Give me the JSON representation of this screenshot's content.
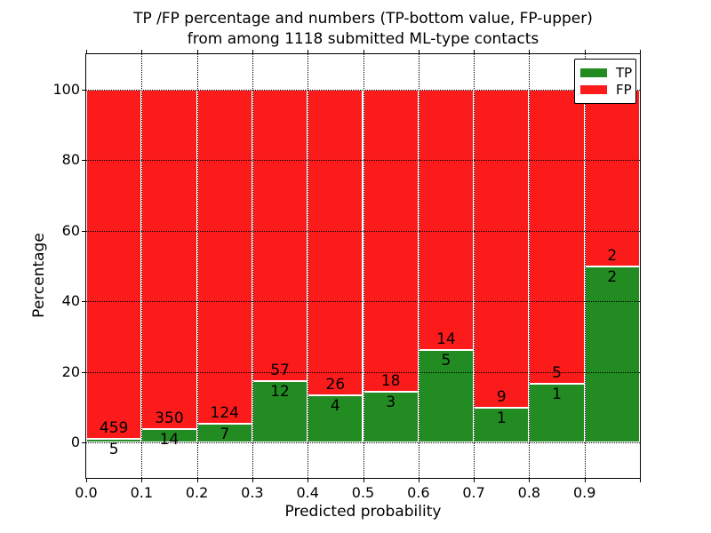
{
  "chart_data": {
    "type": "bar",
    "stacked": true,
    "title_line1": "TP /FP percentage and numbers (TP-bottom value, FP-upper)",
    "title_line2": "from among 1118 submitted ML-type contacts",
    "xlabel": "Predicted probability",
    "ylabel": "Percentage",
    "xlim": [
      0.0,
      1.0
    ],
    "ylim": [
      -10,
      110
    ],
    "xtick_labels": [
      "0.0",
      "0.1",
      "0.2",
      "0.3",
      "0.4",
      "0.5",
      "0.6",
      "0.7",
      "0.8",
      "0.9"
    ],
    "ytick_values": [
      0,
      20,
      40,
      60,
      80,
      100
    ],
    "grid_style": "dotted",
    "categories": [
      "0.0-0.1",
      "0.1-0.2",
      "0.2-0.3",
      "0.3-0.4",
      "0.4-0.5",
      "0.5-0.6",
      "0.6-0.7",
      "0.7-0.8",
      "0.8-0.9",
      "0.9-1.0"
    ],
    "series": [
      {
        "name": "TP",
        "color": "#228b22",
        "counts": [
          5,
          14,
          7,
          12,
          4,
          3,
          5,
          1,
          1,
          2
        ],
        "percentages": [
          1.08,
          3.85,
          5.34,
          17.39,
          13.33,
          14.29,
          26.32,
          10.0,
          16.67,
          50.0
        ]
      },
      {
        "name": "FP",
        "color": "#fb1b1b",
        "counts": [
          459,
          350,
          124,
          57,
          26,
          18,
          14,
          9,
          5,
          2
        ],
        "percentages": [
          98.92,
          96.15,
          94.66,
          82.61,
          86.67,
          85.71,
          73.68,
          90.0,
          83.33,
          50.0
        ]
      }
    ],
    "legend": {
      "position": "upper right",
      "entries": [
        {
          "label": "TP",
          "color": "#228b22"
        },
        {
          "label": "FP",
          "color": "#fb1b1b"
        }
      ]
    }
  }
}
